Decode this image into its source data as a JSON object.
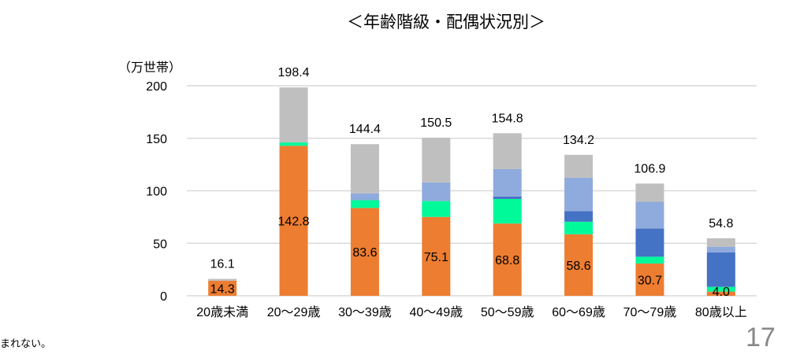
{
  "title": "＜年齢階級・配偶状況別＞",
  "footnote": "まれない。",
  "page_number": "17",
  "chart_data": {
    "type": "bar",
    "stacked": true,
    "ylabel": "（万世帯）",
    "ylim": [
      0,
      200
    ],
    "yticks": [
      0,
      50,
      100,
      150,
      200
    ],
    "grid": true,
    "categories": [
      "20歳未満",
      "20～29歳",
      "30～39歳",
      "40～49歳",
      "50～59歳",
      "60～69歳",
      "70～79歳",
      "80歳以上"
    ],
    "totals": [
      16.1,
      198.4,
      144.4,
      150.5,
      154.8,
      134.2,
      106.9,
      54.8
    ],
    "series": [
      {
        "color": "#ED7D31",
        "values": [
          14.3,
          142.8,
          83.6,
          75.1,
          68.8,
          58.6,
          30.7,
          4.0
        ],
        "labels": [
          "14.3",
          "142.8",
          "83.6",
          "75.1",
          "68.8",
          "58.6",
          "30.7",
          "4.0"
        ]
      },
      {
        "color": "#00FA9A",
        "values": [
          0,
          3.2,
          7.4,
          15.1,
          23.4,
          11.9,
          6.5,
          4.5
        ]
      },
      {
        "color": "#4472C4",
        "values": [
          0,
          0,
          0,
          0,
          2.3,
          10.0,
          26.8,
          32.7
        ]
      },
      {
        "color": "#8FAADC",
        "values": [
          0,
          0,
          6.5,
          17.8,
          26.2,
          32.0,
          25.5,
          5.5
        ]
      },
      {
        "color": "#BFBFBF",
        "values": [
          1.8,
          52.4,
          46.9,
          42.5,
          34.1,
          21.7,
          17.4,
          8.1
        ]
      }
    ]
  }
}
